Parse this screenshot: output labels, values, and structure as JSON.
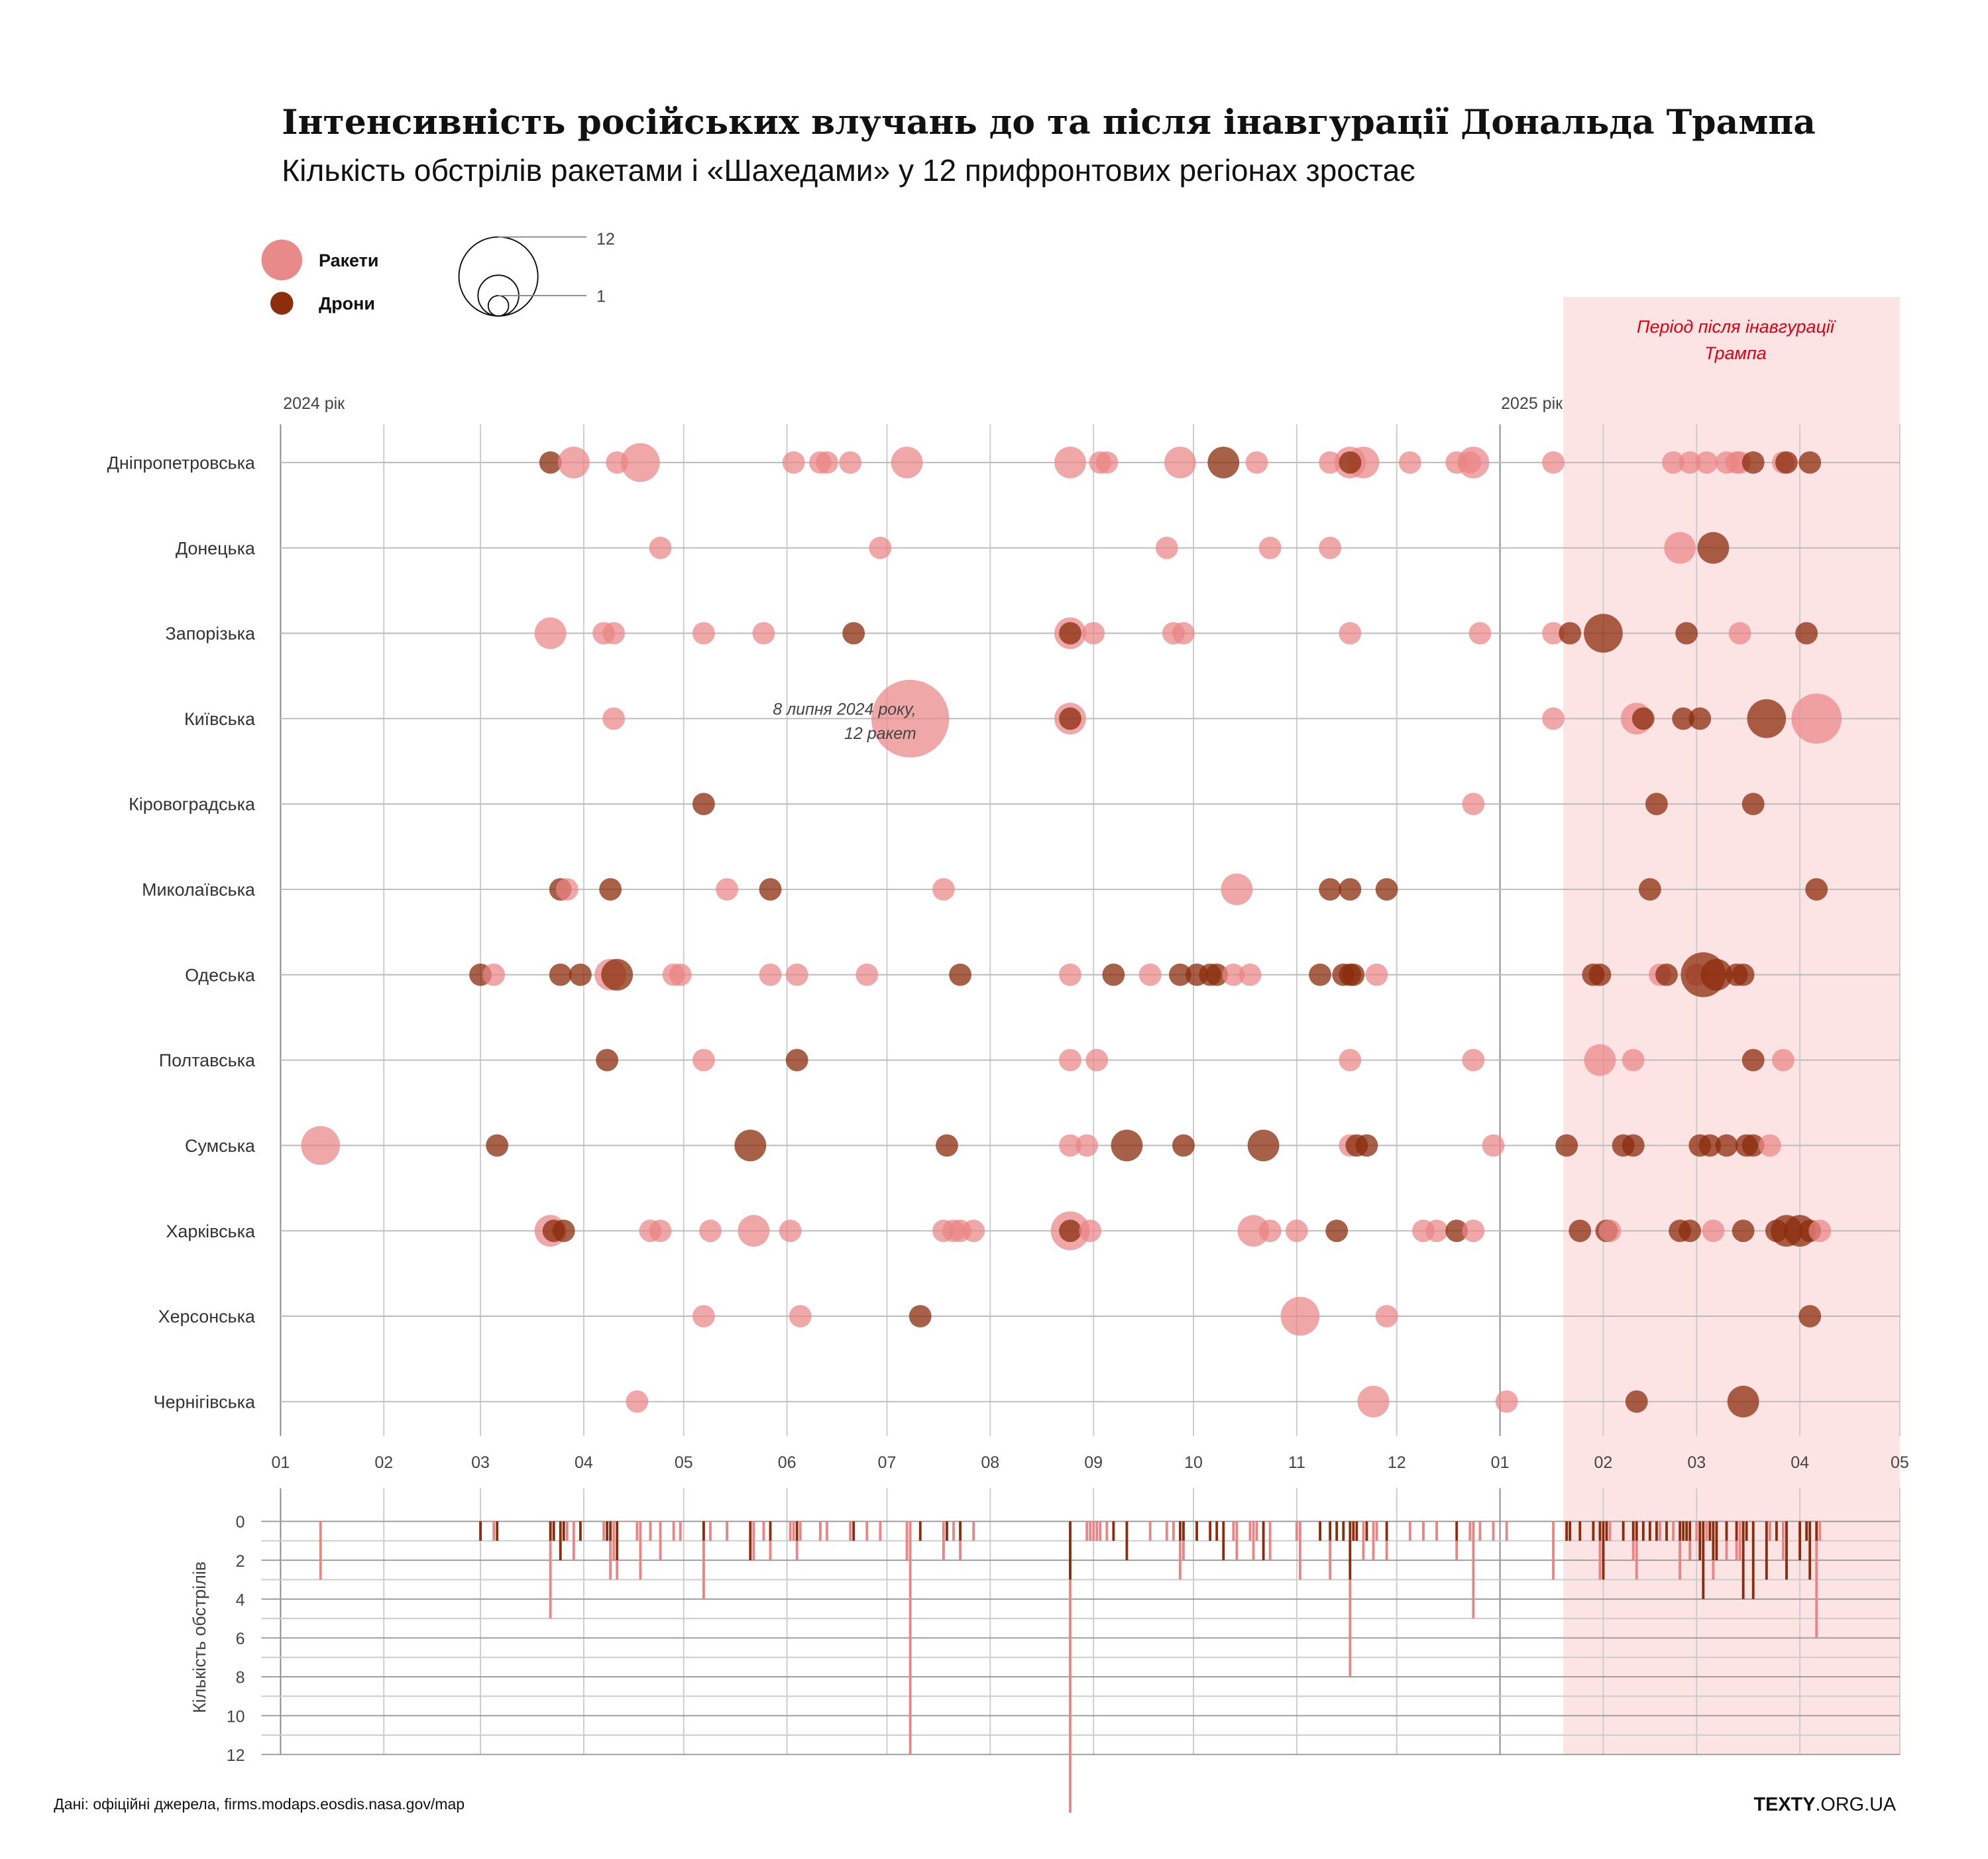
{
  "title": "Інтенсивність російських влучань до та після інавгурації Дональда Трампа",
  "subtitle": "Кількість обстрілів ракетами і «Шахедами» у 12 прифронтових регіонах зростає",
  "legend": {
    "rocket": "Ракети",
    "drone": "Дрони",
    "size_max": "12",
    "size_min": "1"
  },
  "colors": {
    "rocket": "#ea8585",
    "drone": "#8b2c0c",
    "period_bg": "#fde4e4",
    "period_text": "#e0000f"
  },
  "year_labels": [
    "2024 рік",
    "2025 рік"
  ],
  "period_label": [
    "Період після інавгурації",
    "Трампа"
  ],
  "annotation": [
    "8 липня 2024 року,",
    "12 ракет"
  ],
  "footer": {
    "source": "Дані: офіційні джерела, firms.modaps.eosdis.nasa.gov/map",
    "logo_bold": "TEXTY",
    "logo_rest": ".ORG.UA"
  },
  "chart_data": {
    "type": "scatter",
    "x_range": [
      "2024-01-01",
      "2025-05-01"
    ],
    "period_start": "2025-01-20",
    "x_ticks": [
      "01",
      "02",
      "03",
      "04",
      "05",
      "06",
      "07",
      "08",
      "09",
      "10",
      "11",
      "12",
      "01",
      "02",
      "03",
      "04",
      "05"
    ],
    "bar_chart": {
      "ylabel": "Кількість обстрілів",
      "ylim": [
        0,
        12
      ],
      "y_ticks": [
        "0",
        "2",
        "4",
        "6",
        "8",
        "10",
        "12"
      ]
    },
    "regions": [
      {
        "name": "Дніпропетровська",
        "events": [
          [
            "2024-03-22",
            1,
            "drone"
          ],
          [
            "2024-03-29",
            2,
            "rocket"
          ],
          [
            "2024-04-11",
            1,
            "rocket"
          ],
          [
            "2024-04-18",
            3,
            "rocket"
          ],
          [
            "2024-06-03",
            1,
            "rocket"
          ],
          [
            "2024-06-11",
            1,
            "rocket"
          ],
          [
            "2024-06-13",
            1,
            "rocket"
          ],
          [
            "2024-06-20",
            1,
            "rocket"
          ],
          [
            "2024-07-07",
            2,
            "rocket"
          ],
          [
            "2024-08-25",
            2,
            "rocket"
          ],
          [
            "2024-09-03",
            1,
            "rocket"
          ],
          [
            "2024-09-05",
            1,
            "rocket"
          ],
          [
            "2024-09-27",
            2,
            "rocket"
          ],
          [
            "2024-10-10",
            2,
            "drone"
          ],
          [
            "2024-10-20",
            1,
            "rocket"
          ],
          [
            "2024-11-11",
            1,
            "rocket"
          ],
          [
            "2024-11-17",
            2,
            "rocket"
          ],
          [
            "2024-11-21",
            2,
            "rocket"
          ],
          [
            "2024-11-17",
            1,
            "drone"
          ],
          [
            "2024-12-05",
            1,
            "rocket"
          ],
          [
            "2024-12-19",
            1,
            "rocket"
          ],
          [
            "2024-12-23",
            1,
            "rocket"
          ],
          [
            "2024-12-24",
            2,
            "rocket"
          ],
          [
            "2025-01-17",
            1,
            "rocket"
          ],
          [
            "2025-02-22",
            1,
            "rocket"
          ],
          [
            "2025-02-27",
            1,
            "rocket"
          ],
          [
            "2025-03-04",
            1,
            "rocket"
          ],
          [
            "2025-03-10",
            1,
            "rocket"
          ],
          [
            "2025-03-13",
            1,
            "rocket"
          ],
          [
            "2025-03-14",
            1,
            "rocket"
          ],
          [
            "2025-03-18",
            1,
            "drone"
          ],
          [
            "2025-03-27",
            1,
            "rocket"
          ],
          [
            "2025-03-28",
            1,
            "drone"
          ],
          [
            "2025-04-04",
            1,
            "drone"
          ]
        ]
      },
      {
        "name": "Донецька",
        "events": [
          [
            "2024-04-24",
            1,
            "rocket"
          ],
          [
            "2024-06-29",
            1,
            "rocket"
          ],
          [
            "2024-09-23",
            1,
            "rocket"
          ],
          [
            "2024-10-24",
            1,
            "rocket"
          ],
          [
            "2024-11-11",
            1,
            "rocket"
          ],
          [
            "2025-02-24",
            2,
            "rocket"
          ],
          [
            "2025-03-06",
            2,
            "drone"
          ]
        ]
      },
      {
        "name": "Запорізька",
        "events": [
          [
            "2024-03-22",
            2,
            "rocket"
          ],
          [
            "2024-04-07",
            1,
            "rocket"
          ],
          [
            "2024-04-10",
            1,
            "rocket"
          ],
          [
            "2024-05-07",
            1,
            "rocket"
          ],
          [
            "2024-05-25",
            1,
            "rocket"
          ],
          [
            "2024-06-21",
            1,
            "drone"
          ],
          [
            "2024-08-25",
            2,
            "rocket"
          ],
          [
            "2024-08-25",
            1,
            "drone"
          ],
          [
            "2024-09-01",
            1,
            "rocket"
          ],
          [
            "2024-09-25",
            1,
            "rocket"
          ],
          [
            "2024-09-28",
            1,
            "rocket"
          ],
          [
            "2024-11-17",
            1,
            "rocket"
          ],
          [
            "2024-12-26",
            1,
            "rocket"
          ],
          [
            "2025-01-17",
            1,
            "rocket"
          ],
          [
            "2025-01-22",
            1,
            "drone"
          ],
          [
            "2025-02-01",
            3,
            "drone"
          ],
          [
            "2025-02-26",
            1,
            "drone"
          ],
          [
            "2025-03-14",
            1,
            "rocket"
          ],
          [
            "2025-04-03",
            1,
            "drone"
          ]
        ]
      },
      {
        "name": "Київська",
        "events": [
          [
            "2024-04-10",
            1,
            "rocket"
          ],
          [
            "2024-07-08",
            12,
            "rocket"
          ],
          [
            "2024-08-25",
            2,
            "rocket"
          ],
          [
            "2024-08-25",
            1,
            "drone"
          ],
          [
            "2025-01-17",
            1,
            "rocket"
          ],
          [
            "2025-02-11",
            2,
            "rocket"
          ],
          [
            "2025-02-13",
            1,
            "drone"
          ],
          [
            "2025-02-25",
            1,
            "drone"
          ],
          [
            "2025-03-02",
            1,
            "drone"
          ],
          [
            "2025-03-22",
            3,
            "drone"
          ],
          [
            "2025-04-06",
            5,
            "rocket"
          ]
        ]
      },
      {
        "name": "Кіровоградська",
        "events": [
          [
            "2024-05-07",
            1,
            "drone"
          ],
          [
            "2024-12-24",
            1,
            "rocket"
          ],
          [
            "2025-02-17",
            1,
            "drone"
          ],
          [
            "2025-03-18",
            1,
            "drone"
          ]
        ]
      },
      {
        "name": "Миколаївська",
        "events": [
          [
            "2024-03-25",
            1,
            "drone"
          ],
          [
            "2024-03-27",
            1,
            "rocket"
          ],
          [
            "2024-04-09",
            1,
            "drone"
          ],
          [
            "2024-05-14",
            1,
            "rocket"
          ],
          [
            "2024-05-27",
            1,
            "drone"
          ],
          [
            "2024-07-18",
            1,
            "rocket"
          ],
          [
            "2024-10-14",
            2,
            "rocket"
          ],
          [
            "2024-11-11",
            1,
            "drone"
          ],
          [
            "2024-11-17",
            1,
            "drone"
          ],
          [
            "2024-11-28",
            1,
            "drone"
          ],
          [
            "2025-02-15",
            1,
            "drone"
          ],
          [
            "2025-04-06",
            1,
            "drone"
          ]
        ]
      },
      {
        "name": "Одеська",
        "events": [
          [
            "2024-03-01",
            1,
            "drone"
          ],
          [
            "2024-03-05",
            1,
            "rocket"
          ],
          [
            "2024-03-25",
            1,
            "drone"
          ],
          [
            "2024-03-31",
            1,
            "drone"
          ],
          [
            "2024-04-09",
            2,
            "rocket"
          ],
          [
            "2024-04-11",
            2,
            "drone"
          ],
          [
            "2024-04-28",
            1,
            "rocket"
          ],
          [
            "2024-04-30",
            1,
            "rocket"
          ],
          [
            "2024-05-27",
            1,
            "rocket"
          ],
          [
            "2024-06-04",
            1,
            "rocket"
          ],
          [
            "2024-06-25",
            1,
            "rocket"
          ],
          [
            "2024-07-23",
            1,
            "drone"
          ],
          [
            "2024-08-25",
            1,
            "rocket"
          ],
          [
            "2024-09-07",
            1,
            "drone"
          ],
          [
            "2024-09-18",
            1,
            "rocket"
          ],
          [
            "2024-09-27",
            1,
            "drone"
          ],
          [
            "2024-10-02",
            1,
            "drone"
          ],
          [
            "2024-10-06",
            1,
            "drone"
          ],
          [
            "2024-10-08",
            1,
            "drone"
          ],
          [
            "2024-10-13",
            1,
            "rocket"
          ],
          [
            "2024-10-18",
            1,
            "rocket"
          ],
          [
            "2024-11-08",
            1,
            "drone"
          ],
          [
            "2024-11-15",
            1,
            "drone"
          ],
          [
            "2024-11-17",
            1,
            "drone"
          ],
          [
            "2024-11-18",
            1,
            "drone"
          ],
          [
            "2024-11-25",
            1,
            "rocket"
          ],
          [
            "2025-01-29",
            1,
            "drone"
          ],
          [
            "2025-01-31",
            1,
            "drone"
          ],
          [
            "2025-02-18",
            1,
            "rocket"
          ],
          [
            "2025-02-20",
            1,
            "drone"
          ],
          [
            "2025-03-01",
            1,
            "rocket"
          ],
          [
            "2025-03-03",
            4,
            "drone"
          ],
          [
            "2025-03-07",
            2,
            "drone"
          ],
          [
            "2025-03-13",
            1,
            "drone"
          ],
          [
            "2025-03-15",
            1,
            "drone"
          ]
        ]
      },
      {
        "name": "Полтавська",
        "events": [
          [
            "2024-04-08",
            1,
            "drone"
          ],
          [
            "2024-05-07",
            1,
            "rocket"
          ],
          [
            "2024-06-04",
            1,
            "drone"
          ],
          [
            "2024-08-25",
            1,
            "rocket"
          ],
          [
            "2024-09-02",
            1,
            "rocket"
          ],
          [
            "2024-11-17",
            1,
            "rocket"
          ],
          [
            "2024-12-24",
            1,
            "rocket"
          ],
          [
            "2025-01-31",
            2,
            "rocket"
          ],
          [
            "2025-02-10",
            1,
            "rocket"
          ],
          [
            "2025-03-18",
            1,
            "drone"
          ],
          [
            "2025-03-27",
            1,
            "rocket"
          ]
        ]
      },
      {
        "name": "Сумська",
        "events": [
          [
            "2024-01-13",
            3,
            "rocket"
          ],
          [
            "2024-03-06",
            1,
            "drone"
          ],
          [
            "2024-05-21",
            2,
            "drone"
          ],
          [
            "2024-07-19",
            1,
            "drone"
          ],
          [
            "2024-08-25",
            1,
            "rocket"
          ],
          [
            "2024-08-30",
            1,
            "rocket"
          ],
          [
            "2024-09-11",
            2,
            "drone"
          ],
          [
            "2024-09-28",
            1,
            "drone"
          ],
          [
            "2024-10-22",
            2,
            "drone"
          ],
          [
            "2024-11-17",
            1,
            "rocket"
          ],
          [
            "2024-11-19",
            1,
            "drone"
          ],
          [
            "2024-11-22",
            1,
            "drone"
          ],
          [
            "2024-12-30",
            1,
            "rocket"
          ],
          [
            "2025-01-21",
            1,
            "drone"
          ],
          [
            "2025-02-07",
            1,
            "drone"
          ],
          [
            "2025-02-10",
            1,
            "drone"
          ],
          [
            "2025-03-02",
            1,
            "drone"
          ],
          [
            "2025-03-05",
            1,
            "drone"
          ],
          [
            "2025-03-10",
            1,
            "drone"
          ],
          [
            "2025-03-16",
            1,
            "drone"
          ],
          [
            "2025-03-18",
            1,
            "drone"
          ],
          [
            "2025-03-23",
            1,
            "rocket"
          ]
        ]
      },
      {
        "name": "Харківська",
        "events": [
          [
            "2024-03-22",
            2,
            "rocket"
          ],
          [
            "2024-03-23",
            1,
            "drone"
          ],
          [
            "2024-03-26",
            1,
            "drone"
          ],
          [
            "2024-04-21",
            1,
            "rocket"
          ],
          [
            "2024-04-24",
            1,
            "rocket"
          ],
          [
            "2024-05-09",
            1,
            "rocket"
          ],
          [
            "2024-05-22",
            2,
            "rocket"
          ],
          [
            "2024-06-02",
            1,
            "rocket"
          ],
          [
            "2024-07-18",
            1,
            "rocket"
          ],
          [
            "2024-07-21",
            1,
            "rocket"
          ],
          [
            "2024-07-23",
            1,
            "rocket"
          ],
          [
            "2024-07-27",
            1,
            "rocket"
          ],
          [
            "2024-08-25",
            3,
            "rocket"
          ],
          [
            "2024-08-25",
            1,
            "drone"
          ],
          [
            "2024-08-31",
            1,
            "rocket"
          ],
          [
            "2024-10-19",
            2,
            "rocket"
          ],
          [
            "2024-10-24",
            1,
            "rocket"
          ],
          [
            "2024-11-01",
            1,
            "rocket"
          ],
          [
            "2024-11-13",
            1,
            "drone"
          ],
          [
            "2024-12-09",
            1,
            "rocket"
          ],
          [
            "2024-12-13",
            1,
            "rocket"
          ],
          [
            "2024-12-19",
            1,
            "drone"
          ],
          [
            "2024-12-24",
            1,
            "rocket"
          ],
          [
            "2025-01-25",
            1,
            "drone"
          ],
          [
            "2025-02-02",
            1,
            "drone"
          ],
          [
            "2025-02-03",
            1,
            "rocket"
          ],
          [
            "2025-02-24",
            1,
            "drone"
          ],
          [
            "2025-02-27",
            1,
            "drone"
          ],
          [
            "2025-03-06",
            1,
            "rocket"
          ],
          [
            "2025-03-15",
            1,
            "drone"
          ],
          [
            "2025-03-25",
            1,
            "drone"
          ],
          [
            "2025-03-28",
            2,
            "drone"
          ],
          [
            "2025-04-01",
            2,
            "drone"
          ],
          [
            "2025-04-04",
            1,
            "drone"
          ],
          [
            "2025-04-07",
            1,
            "rocket"
          ]
        ]
      },
      {
        "name": "Херсонська",
        "events": [
          [
            "2024-05-07",
            1,
            "rocket"
          ],
          [
            "2024-06-05",
            1,
            "rocket"
          ],
          [
            "2024-07-11",
            1,
            "drone"
          ],
          [
            "2024-11-02",
            3,
            "rocket"
          ],
          [
            "2024-11-28",
            1,
            "rocket"
          ],
          [
            "2025-04-04",
            1,
            "drone"
          ]
        ]
      },
      {
        "name": "Чернігівська",
        "events": [
          [
            "2024-04-17",
            1,
            "rocket"
          ],
          [
            "2024-11-24",
            2,
            "rocket"
          ],
          [
            "2025-01-03",
            1,
            "rocket"
          ],
          [
            "2025-02-11",
            1,
            "drone"
          ],
          [
            "2025-03-15",
            2,
            "drone"
          ]
        ]
      }
    ]
  }
}
